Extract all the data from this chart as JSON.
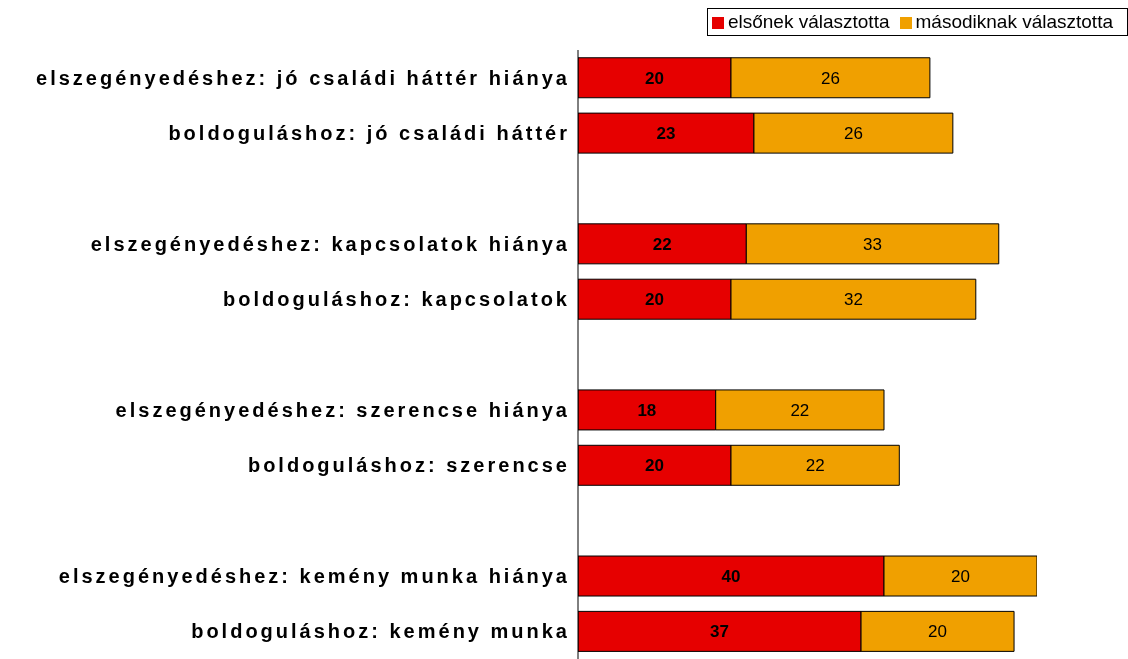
{
  "chart_data": {
    "type": "bar",
    "orientation": "horizontal",
    "stacked": true,
    "data_labels": true,
    "legend": "top right",
    "categories": [
      "elszegényedéshez: jó családi háttér hiánya",
      "boldoguláshoz: jó családi háttér",
      null,
      "elszegényedéshez: kapcsolatok hiánya",
      "boldoguláshoz: kapcsolatok",
      null,
      "elszegényedéshez: szerencse hiánya",
      "boldoguláshoz: szerencse",
      null,
      "elszegényedéshez: kemény munka hiánya",
      "boldoguláshoz: kemény munka"
    ],
    "series": [
      {
        "name": "elsőnek választotta",
        "color": "#e60000",
        "values": [
          20,
          23,
          null,
          22,
          20,
          null,
          18,
          20,
          null,
          40,
          37
        ]
      },
      {
        "name": "másodiknak választotta",
        "color": "#f0a000",
        "values": [
          26,
          26,
          null,
          33,
          32,
          null,
          22,
          22,
          null,
          20,
          20
        ]
      }
    ]
  }
}
